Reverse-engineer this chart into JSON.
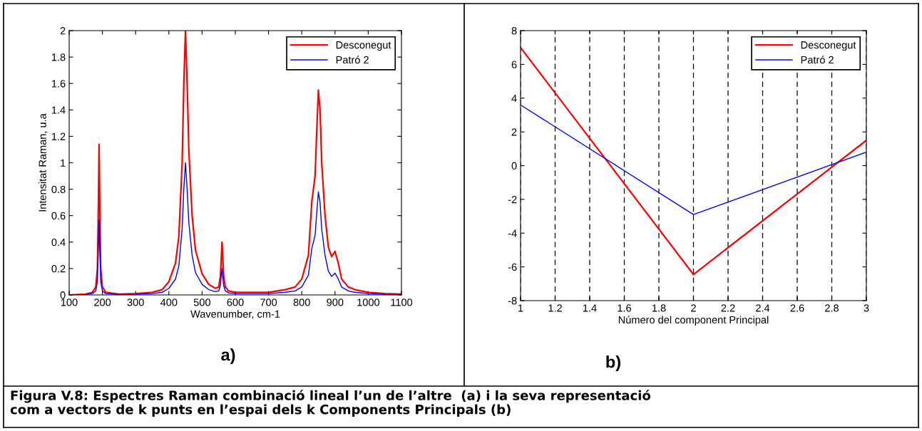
{
  "chart_data": [
    {
      "type": "line",
      "xlabel": "Wavenumber, cm-1",
      "ylabel": "Intensitat Raman, u.a",
      "annotations": [
        "a)",
        "Figura V.8: Espectres Raman combinació lineal l’un de l’altre  (a) i la seva representació\ncom a vectors de k punts en l’espai dels k Components Principals (b)"
      ],
      "x": [
        100,
        150,
        170,
        180,
        185,
        188,
        190,
        192,
        195,
        200,
        210,
        250,
        300,
        350,
        380,
        400,
        420,
        430,
        440,
        445,
        450,
        455,
        460,
        470,
        480,
        500,
        520,
        540,
        550,
        555,
        560,
        565,
        570,
        580,
        600,
        650,
        700,
        750,
        780,
        800,
        820,
        830,
        840,
        845,
        850,
        855,
        860,
        870,
        880,
        890,
        900,
        910,
        920,
        940,
        960,
        1000,
        1050,
        1100
      ],
      "series": [
        {
          "name": "Desconegut",
          "color": "#ff0000",
          "values": [
            0,
            0.006,
            0.02,
            0.06,
            0.2,
            0.7,
            1.14,
            0.7,
            0.2,
            0.06,
            0.02,
            0.006,
            0.01,
            0.02,
            0.04,
            0.1,
            0.24,
            0.44,
            1.0,
            1.6,
            2.0,
            1.6,
            1.1,
            0.6,
            0.34,
            0.16,
            0.08,
            0.05,
            0.06,
            0.14,
            0.4,
            0.14,
            0.06,
            0.03,
            0.02,
            0.02,
            0.02,
            0.04,
            0.06,
            0.12,
            0.3,
            0.7,
            0.9,
            1.24,
            1.55,
            1.4,
            1.0,
            0.6,
            0.36,
            0.29,
            0.33,
            0.24,
            0.12,
            0.06,
            0.04,
            0.02,
            0.01,
            0.006
          ]
        },
        {
          "name": "Patró 2",
          "color": "#0000ff",
          "values": [
            0,
            0.003,
            0.01,
            0.03,
            0.1,
            0.35,
            0.57,
            0.35,
            0.1,
            0.03,
            0.01,
            0.003,
            0.005,
            0.01,
            0.02,
            0.05,
            0.12,
            0.22,
            0.5,
            0.8,
            1.0,
            0.8,
            0.55,
            0.3,
            0.17,
            0.08,
            0.04,
            0.025,
            0.03,
            0.07,
            0.2,
            0.07,
            0.03,
            0.015,
            0.01,
            0.01,
            0.01,
            0.02,
            0.03,
            0.06,
            0.15,
            0.35,
            0.45,
            0.62,
            0.78,
            0.7,
            0.5,
            0.3,
            0.18,
            0.14,
            0.165,
            0.12,
            0.06,
            0.03,
            0.02,
            0.01,
            0.005,
            0.003
          ]
        }
      ],
      "xlim": [
        100,
        1100
      ],
      "xticks": [
        100,
        200,
        300,
        400,
        500,
        600,
        700,
        800,
        900,
        1000,
        1100
      ],
      "ylim": [
        0,
        2
      ],
      "yticks": [
        0,
        0.2,
        0.4,
        0.6,
        0.8,
        1,
        1.2,
        1.4,
        1.6,
        1.8,
        2
      ],
      "grid": false,
      "legend": "top right",
      "line_style": "solid",
      "marker": "none"
    },
    {
      "type": "line",
      "xlabel": "Número del component Principal",
      "annotations": [
        "b)"
      ],
      "x": [
        1,
        2,
        3
      ],
      "series": [
        {
          "name": "Desconegut",
          "color": "#ff0000",
          "values": [
            7.0,
            -6.45,
            1.5
          ]
        },
        {
          "name": "Patró 2",
          "color": "#0000ff",
          "values": [
            3.6,
            -2.9,
            0.8
          ]
        }
      ],
      "xlim": [
        1,
        3
      ],
      "xticks": [
        1,
        1.2,
        1.4,
        1.6,
        1.8,
        2,
        2.2,
        2.4,
        2.6,
        2.8,
        3
      ],
      "ylim": [
        -8,
        8
      ],
      "yticks": [
        -8,
        -6,
        -4,
        -2,
        0,
        2,
        4,
        6,
        8
      ],
      "grid": "x",
      "legend": "top right",
      "line_style": "solid",
      "marker": "none"
    }
  ]
}
